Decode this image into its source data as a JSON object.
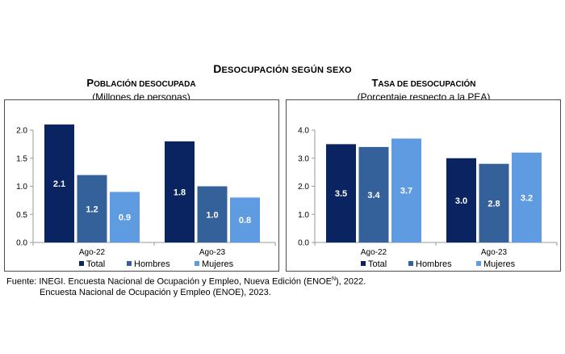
{
  "header": {
    "title_first": "D",
    "title_rest": "ESOCUPACIÓN SEGÚN SEXO"
  },
  "colors": {
    "Total": "#0a2361",
    "Hombres": "#35619b",
    "Mujeres": "#5e9be0",
    "axis": "#9a9a9a",
    "bar_label": "#ffffff"
  },
  "chart_data": [
    {
      "type": "bar",
      "title_first": "P",
      "title_rest": "OBLACIÓN DESOCUPADA",
      "subtitle": "(Millones de personas)",
      "categories": [
        "Ago-22",
        "Ago-23"
      ],
      "series": [
        {
          "name": "Total",
          "values": [
            2.1,
            1.8
          ],
          "labels": [
            "2.1",
            "1.8"
          ]
        },
        {
          "name": "Hombres",
          "values": [
            1.2,
            1.0
          ],
          "labels": [
            "1.2",
            "1.0"
          ]
        },
        {
          "name": "Mujeres",
          "values": [
            0.9,
            0.8
          ],
          "labels": [
            "0.9",
            "0.8"
          ]
        }
      ],
      "ylim": [
        0,
        2.0
      ],
      "yticks": [
        "0.0",
        "0.5",
        "1.0",
        "1.5",
        "2.0"
      ],
      "ytick_values": [
        0,
        0.5,
        1.0,
        1.5,
        2.0
      ],
      "grid": false,
      "legend": "bottom"
    },
    {
      "type": "bar",
      "title_first": "T",
      "title_rest": "ASA DE DESOCUPACIÓN",
      "subtitle": "(Porcentaje respecto a la PEA)",
      "categories": [
        "Ago-22",
        "Ago-23"
      ],
      "series": [
        {
          "name": "Total",
          "values": [
            3.5,
            3.0
          ],
          "labels": [
            "3.5",
            "3.0"
          ]
        },
        {
          "name": "Hombres",
          "values": [
            3.4,
            2.8
          ],
          "labels": [
            "3.4",
            "2.8"
          ]
        },
        {
          "name": "Mujeres",
          "values": [
            3.7,
            3.2
          ],
          "labels": [
            "3.7",
            "3.2"
          ]
        }
      ],
      "ylim": [
        0,
        4.0
      ],
      "yticks": [
        "0.0",
        "1.0",
        "2.0",
        "3.0",
        "4.0"
      ],
      "ytick_values": [
        0,
        1.0,
        2.0,
        3.0,
        4.0
      ],
      "grid": false,
      "legend": "bottom"
    }
  ],
  "source": {
    "line1_pre": "Fuente: INEGI. Encuesta Nacional de Ocupación y Empleo, Nueva Edición (ENOE",
    "line1_sup": "N",
    "line1_post": "), 2022.",
    "line2": "Encuesta Nacional de Ocupación y Empleo (ENOE), 2023."
  }
}
